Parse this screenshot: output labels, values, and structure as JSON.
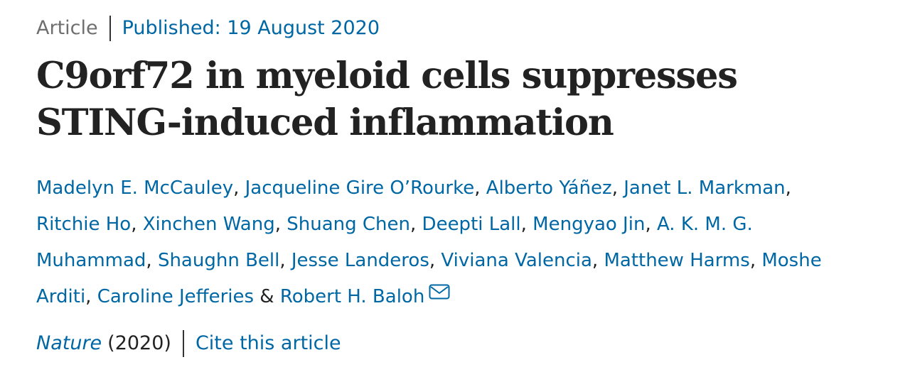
{
  "article": {
    "type_label": "Article",
    "published": "Published: 19 August 2020",
    "title": "C9orf72 in myeloid cells suppresses STING-induced inflammation",
    "authors": [
      "Madelyn E. McCauley",
      "Jacqueline Gire O’Rourke",
      "Alberto Yáñez",
      "Janet L. Markman",
      "Ritchie Ho",
      "Xinchen Wang",
      "Shuang Chen",
      "Deepti Lall",
      "Mengyao Jin",
      "A. K. M. G. Muhammad",
      "Shaughn Bell",
      "Jesse Landeros",
      "Viviana Valencia",
      "Matthew Harms",
      "Moshe Arditi",
      "Caroline Jefferies",
      "Robert H. Baloh"
    ],
    "author_separator": ", ",
    "last_author_joiner": " & ",
    "journal": "Nature",
    "year": "(2020)",
    "cite_label": "Cite this article"
  },
  "icons": {
    "contact": "envelope-icon"
  },
  "colors": {
    "link": "#0067a5",
    "text": "#222222",
    "muted": "#6f6f6f"
  }
}
